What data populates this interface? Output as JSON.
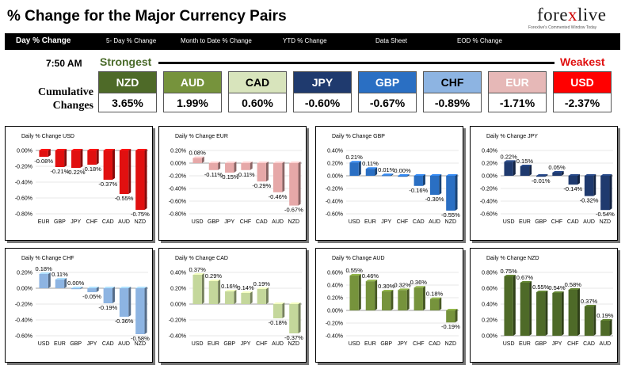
{
  "header": {
    "title": "% Change for the Major Currency Pairs",
    "logo_text_a": "fore",
    "logo_text_x": "x",
    "logo_text_b": "live",
    "logo_tagline": "Forexlive's Commented Window Today"
  },
  "nav": {
    "items": [
      "Day % Change",
      "5- Day % Change",
      "Month to Date % Change",
      "YTD % Change",
      "Data Sheet",
      "EOD % Change"
    ]
  },
  "summary": {
    "time": "7:50 AM",
    "strongest_label": "Strongest",
    "weakest_label": "Weakest",
    "cumulative_label_1": "Cumulative",
    "cumulative_label_2": "Changes",
    "currencies": [
      {
        "code": "NZD",
        "value": "3.65%",
        "bg": "#4e6a28",
        "fg": "#ffffff"
      },
      {
        "code": "AUD",
        "value": "1.99%",
        "bg": "#76933c",
        "fg": "#ffffff"
      },
      {
        "code": "CAD",
        "value": "0.60%",
        "bg": "#d8e4bc",
        "fg": "#000000"
      },
      {
        "code": "JPY",
        "value": "-0.60%",
        "bg": "#1f3a6e",
        "fg": "#ffffff"
      },
      {
        "code": "GBP",
        "value": "-0.67%",
        "bg": "#2a6fc3",
        "fg": "#ffffff"
      },
      {
        "code": "CHF",
        "value": "-0.89%",
        "bg": "#8db4e2",
        "fg": "#000000"
      },
      {
        "code": "EUR",
        "value": "-1.71%",
        "bg": "#e6b8b7",
        "fg": "#ffffff"
      },
      {
        "code": "USD",
        "value": "-2.37%",
        "bg": "#ff0000",
        "fg": "#ffffff"
      }
    ]
  },
  "chart_data": [
    {
      "type": "bar",
      "title": "Daily % Change USD",
      "categories": [
        "EUR",
        "GBP",
        "JPY",
        "CHF",
        "CAD",
        "AUD",
        "NZD"
      ],
      "values": [
        -0.08,
        -0.21,
        -0.22,
        -0.18,
        -0.37,
        -0.55,
        -0.75
      ],
      "labels": [
        "-0.08%",
        "-0.21%",
        "-0.22%",
        "-0.18%",
        "-0.37%",
        "-0.55%",
        "-0.75%"
      ],
      "ylim": [
        -0.8,
        0.0
      ],
      "ticks": [
        "0.00%",
        "-0.20%",
        "-0.40%",
        "-0.60%",
        "-0.80%"
      ],
      "color": "#e11010"
    },
    {
      "type": "bar",
      "title": "Daily % Change EUR",
      "categories": [
        "USD",
        "GBP",
        "JPY",
        "CHF",
        "CAD",
        "AUD",
        "NZD"
      ],
      "values": [
        0.08,
        -0.11,
        -0.15,
        -0.11,
        -0.29,
        -0.46,
        -0.67
      ],
      "labels": [
        "0.08%",
        "-0.11%",
        "-0.15%",
        "-0.11%",
        "-0.29%",
        "-0.46%",
        "-0.67%"
      ],
      "ylim": [
        -0.8,
        0.2
      ],
      "ticks": [
        "0.20%",
        "0.00%",
        "-0.20%",
        "-0.40%",
        "-0.60%",
        "-0.80%"
      ],
      "color": "#e6a8a8"
    },
    {
      "type": "bar",
      "title": "Daily % Change GBP",
      "categories": [
        "USD",
        "EUR",
        "JPY",
        "CHF",
        "CAD",
        "AUD",
        "NZD"
      ],
      "values": [
        0.21,
        0.11,
        0.01,
        0.0,
        -0.16,
        -0.3,
        -0.55
      ],
      "labels": [
        "0.21%",
        "0.11%",
        "0.01%",
        "0.00%",
        "-0.16%",
        "-0.30%",
        "-0.55%"
      ],
      "ylim": [
        -0.6,
        0.4
      ],
      "ticks": [
        "0.40%",
        "0.20%",
        "0.00%",
        "-0.20%",
        "-0.40%",
        "-0.60%"
      ],
      "color": "#2a6fc3"
    },
    {
      "type": "bar",
      "title": "Daily % Change JPY",
      "categories": [
        "USD",
        "EUR",
        "GBP",
        "CHF",
        "CAD",
        "AUD",
        "NZD"
      ],
      "values": [
        0.22,
        0.15,
        -0.01,
        0.05,
        -0.14,
        -0.32,
        -0.54
      ],
      "labels": [
        "0.22%",
        "0.15%",
        "-0.01%",
        "0.05%",
        "-0.14%",
        "-0.32%",
        "-0.54%"
      ],
      "ylim": [
        -0.6,
        0.4
      ],
      "ticks": [
        "0.40%",
        "0.20%",
        "0.00%",
        "-0.20%",
        "-0.40%",
        "-0.60%"
      ],
      "color": "#1f3a6e"
    },
    {
      "type": "bar",
      "title": "Daily % Change CHF",
      "categories": [
        "USD",
        "EUR",
        "GBP",
        "JPY",
        "CAD",
        "AUD",
        "NZD"
      ],
      "values": [
        0.18,
        0.11,
        0.0,
        -0.05,
        -0.19,
        -0.36,
        -0.58
      ],
      "labels": [
        "0.18%",
        "0.11%",
        "0.00%",
        "-0.05%",
        "-0.19%",
        "-0.36%",
        "-0.58%"
      ],
      "ylim": [
        -0.6,
        0.2
      ],
      "ticks": [
        "0.20%",
        "0.00%",
        "-0.20%",
        "-0.40%",
        "-0.60%"
      ],
      "color": "#8db4e2"
    },
    {
      "type": "bar",
      "title": "Daily % Change CAD",
      "categories": [
        "USD",
        "EUR",
        "GBP",
        "JPY",
        "CHF",
        "AUD",
        "NZD"
      ],
      "values": [
        0.37,
        0.29,
        0.16,
        0.14,
        0.19,
        -0.18,
        -0.37
      ],
      "labels": [
        "0.37%",
        "0.29%",
        "0.16%",
        "0.14%",
        "0.19%",
        "-0.18%",
        "-0.37%"
      ],
      "ylim": [
        -0.4,
        0.4
      ],
      "ticks": [
        "0.40%",
        "0.20%",
        "0.00%",
        "-0.20%",
        "-0.40%"
      ],
      "color": "#c4d79b"
    },
    {
      "type": "bar",
      "title": "Daily % Change AUD",
      "categories": [
        "USD",
        "EUR",
        "GBP",
        "JPY",
        "CHF",
        "CAD",
        "NZD"
      ],
      "values": [
        0.55,
        0.46,
        0.3,
        0.32,
        0.36,
        0.18,
        -0.19
      ],
      "labels": [
        "0.55%",
        "0.46%",
        "0.30%",
        "0.32%",
        "0.36%",
        "0.18%",
        "-0.19%"
      ],
      "ylim": [
        -0.4,
        0.6
      ],
      "ticks": [
        "0.60%",
        "0.40%",
        "0.20%",
        "0.00%",
        "-0.20%",
        "-0.40%"
      ],
      "color": "#76933c"
    },
    {
      "type": "bar",
      "title": "Daily % Change NZD",
      "categories": [
        "USD",
        "EUR",
        "GBP",
        "JPY",
        "CHF",
        "CAD",
        "AUD"
      ],
      "values": [
        0.75,
        0.67,
        0.55,
        0.54,
        0.58,
        0.37,
        0.19
      ],
      "labels": [
        "0.75%",
        "0.67%",
        "0.55%",
        "0.54%",
        "0.58%",
        "0.37%",
        "0.19%"
      ],
      "ylim": [
        0.0,
        0.8
      ],
      "ticks": [
        "0.80%",
        "0.60%",
        "0.40%",
        "0.20%",
        "0.00%"
      ],
      "color": "#4e6a28"
    }
  ]
}
